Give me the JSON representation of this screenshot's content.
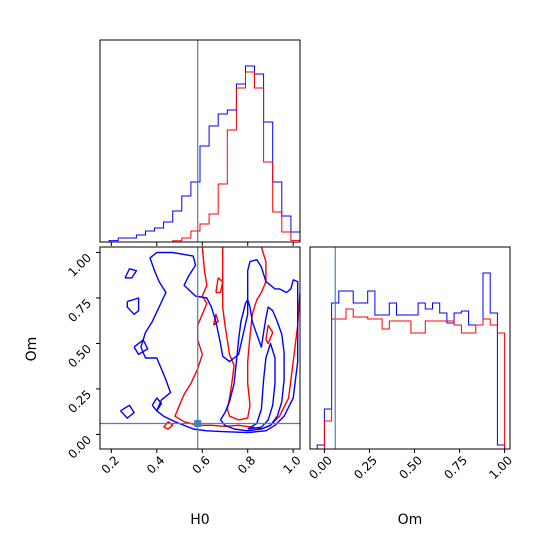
{
  "chart_data": {
    "type": "corner",
    "parameters": [
      "H0",
      "Om"
    ],
    "truth": {
      "H0": 0.58,
      "Om": 0.06
    },
    "truth_color": "#4682b4",
    "series_colors": {
      "blue": "#0000ff",
      "red": "#ff0000"
    },
    "xlim_H0": [
      0.15,
      1.03
    ],
    "xlim_Om": [
      -0.08,
      1.03
    ],
    "ylim_Om": [
      -0.08,
      1.03
    ],
    "ticks_H0": [
      "0.2",
      "0.4",
      "0.6",
      "0.8",
      "1.0"
    ],
    "ticks_Om": [
      "0.00",
      "0.25",
      "0.50",
      "0.75",
      "1.00"
    ],
    "hist_H0": {
      "edges": [
        0.19,
        0.23,
        0.27,
        0.31,
        0.35,
        0.39,
        0.43,
        0.47,
        0.51,
        0.55,
        0.59,
        0.63,
        0.67,
        0.71,
        0.75,
        0.79,
        0.83,
        0.87,
        0.91,
        0.95,
        0.99,
        1.03
      ],
      "blue": [
        0.007,
        0.02,
        0.02,
        0.035,
        0.055,
        0.07,
        0.1,
        0.155,
        0.23,
        0.3,
        0.48,
        0.58,
        0.64,
        0.66,
        0.79,
        0.88,
        0.84,
        0.6,
        0.3,
        0.13,
        0.05
      ],
      "red": [
        0,
        0,
        0,
        0,
        0,
        0,
        0,
        0.006,
        0.02,
        0.055,
        0.09,
        0.14,
        0.29,
        0.56,
        0.77,
        0.85,
        0.77,
        0.4,
        0.15,
        0.05,
        0.008
      ]
    },
    "hist_Om": {
      "edges": [
        -0.04,
        0,
        0.04,
        0.08,
        0.12,
        0.16,
        0.2,
        0.24,
        0.28,
        0.32,
        0.36,
        0.4,
        0.44,
        0.48,
        0.52,
        0.56,
        0.6,
        0.64,
        0.68,
        0.72,
        0.76,
        0.8,
        0.84,
        0.88,
        0.92,
        0.96,
        1.0
      ],
      "blue": [
        0.02,
        0.2,
        0.73,
        0.79,
        0.79,
        0.73,
        0.73,
        0.79,
        0.67,
        0.67,
        0.73,
        0.67,
        0.67,
        0.67,
        0.73,
        0.7,
        0.73,
        0.68,
        0.63,
        0.68,
        0.69,
        0.62,
        0.62,
        0.88,
        0.68,
        0.02
      ],
      "red": [
        0,
        0.14,
        0.65,
        0.65,
        0.7,
        0.66,
        0.66,
        0.65,
        0.65,
        0.6,
        0.64,
        0.64,
        0.64,
        0.58,
        0.58,
        0.64,
        0.64,
        0.64,
        0.64,
        0.62,
        0.58,
        0.58,
        0.62,
        0.65,
        0.62,
        0.58
      ]
    },
    "contours": {
      "blue": [
        [
          [
            0.56,
            0.03
          ],
          [
            0.48,
            0.07
          ],
          [
            0.43,
            0.1
          ],
          [
            0.4,
            0.13
          ],
          [
            0.42,
            0.19
          ],
          [
            0.46,
            0.23
          ],
          [
            0.44,
            0.3
          ],
          [
            0.42,
            0.36
          ],
          [
            0.4,
            0.42
          ],
          [
            0.35,
            0.42
          ],
          [
            0.33,
            0.48
          ],
          [
            0.35,
            0.56
          ],
          [
            0.38,
            0.62
          ],
          [
            0.41,
            0.7
          ],
          [
            0.44,
            0.78
          ],
          [
            0.41,
            0.84
          ],
          [
            0.39,
            0.9
          ],
          [
            0.37,
            0.97
          ],
          [
            0.4,
            1.0
          ],
          [
            0.47,
            1.0
          ],
          [
            0.56,
            0.98
          ],
          [
            0.57,
            0.93
          ],
          [
            0.54,
            0.87
          ],
          [
            0.52,
            0.82
          ],
          [
            0.57,
            0.76
          ],
          [
            0.62,
            0.75
          ],
          [
            0.64,
            0.7
          ],
          [
            0.66,
            0.62
          ],
          [
            0.68,
            0.5
          ],
          [
            0.69,
            0.43
          ],
          [
            0.72,
            0.4
          ],
          [
            0.76,
            0.44
          ],
          [
            0.8,
            0.66
          ],
          [
            0.8,
            0.9
          ],
          [
            0.81,
            0.95
          ],
          [
            0.84,
            0.96
          ],
          [
            0.86,
            0.92
          ],
          [
            0.88,
            0.84
          ],
          [
            0.9,
            0.82
          ],
          [
            0.92,
            0.8
          ],
          [
            0.94,
            0.8
          ],
          [
            0.97,
            0.78
          ],
          [
            0.99,
            0.8
          ],
          [
            1.0,
            0.85
          ],
          [
            1.02,
            0.84
          ],
          [
            1.02,
            0.4
          ],
          [
            1.0,
            0.2
          ],
          [
            0.96,
            0.1
          ],
          [
            0.92,
            0.05
          ],
          [
            0.88,
            0.02
          ],
          [
            0.8,
            0.01
          ],
          [
            0.7,
            0.015
          ],
          [
            0.62,
            0.02
          ],
          [
            0.56,
            0.03
          ]
        ],
        [
          [
            0.68,
            0.08
          ],
          [
            0.7,
            0.12
          ],
          [
            0.72,
            0.18
          ],
          [
            0.74,
            0.28
          ],
          [
            0.75,
            0.4
          ],
          [
            0.76,
            0.52
          ],
          [
            0.77,
            0.62
          ],
          [
            0.79,
            0.72
          ],
          [
            0.8,
            0.74
          ],
          [
            0.81,
            0.7
          ],
          [
            0.82,
            0.62
          ],
          [
            0.84,
            0.55
          ],
          [
            0.86,
            0.48
          ],
          [
            0.87,
            0.56
          ],
          [
            0.88,
            0.64
          ],
          [
            0.89,
            0.7
          ],
          [
            0.91,
            0.68
          ],
          [
            0.93,
            0.62
          ],
          [
            0.95,
            0.55
          ],
          [
            0.96,
            0.45
          ],
          [
            0.96,
            0.3
          ],
          [
            0.95,
            0.18
          ],
          [
            0.93,
            0.1
          ],
          [
            0.9,
            0.05
          ],
          [
            0.86,
            0.03
          ],
          [
            0.8,
            0.02
          ],
          [
            0.74,
            0.03
          ],
          [
            0.7,
            0.05
          ],
          [
            0.68,
            0.08
          ]
        ],
        [
          [
            0.8,
            0.03
          ],
          [
            0.84,
            0.06
          ],
          [
            0.86,
            0.14
          ],
          [
            0.87,
            0.3
          ],
          [
            0.88,
            0.42
          ],
          [
            0.9,
            0.5
          ],
          [
            0.92,
            0.42
          ],
          [
            0.92,
            0.28
          ],
          [
            0.91,
            0.16
          ],
          [
            0.89,
            0.08
          ],
          [
            0.86,
            0.04
          ],
          [
            0.8,
            0.03
          ]
        ],
        [
          [
            0.27,
            0.73
          ],
          [
            0.32,
            0.75
          ],
          [
            0.32,
            0.68
          ],
          [
            0.3,
            0.66
          ],
          [
            0.27,
            0.7
          ],
          [
            0.27,
            0.73
          ]
        ],
        [
          [
            0.3,
            0.48
          ],
          [
            0.34,
            0.52
          ],
          [
            0.36,
            0.47
          ],
          [
            0.32,
            0.44
          ],
          [
            0.3,
            0.48
          ]
        ],
        [
          [
            0.26,
            0.86
          ],
          [
            0.28,
            0.91
          ],
          [
            0.31,
            0.9
          ],
          [
            0.29,
            0.86
          ],
          [
            0.26,
            0.86
          ]
        ],
        [
          [
            0.24,
            0.13
          ],
          [
            0.28,
            0.16
          ],
          [
            0.3,
            0.12
          ],
          [
            0.27,
            0.09
          ],
          [
            0.24,
            0.13
          ]
        ],
        [
          [
            0.38,
            0.16
          ],
          [
            0.4,
            0.2
          ],
          [
            0.42,
            0.17
          ],
          [
            0.4,
            0.13
          ],
          [
            0.38,
            0.16
          ]
        ]
      ],
      "red": [
        [
          [
            0.69,
            1.03
          ],
          [
            0.69,
            0.92
          ],
          [
            0.69,
            0.8
          ],
          [
            0.69,
            0.7
          ],
          [
            0.7,
            0.6
          ],
          [
            0.71,
            0.52
          ],
          [
            0.72,
            0.44
          ],
          [
            0.74,
            0.38
          ],
          [
            0.73,
            0.28
          ],
          [
            0.72,
            0.2
          ],
          [
            0.71,
            0.14
          ],
          [
            0.72,
            0.1
          ],
          [
            0.76,
            0.08
          ],
          [
            0.8,
            0.09
          ],
          [
            0.81,
            0.16
          ],
          [
            0.8,
            0.28
          ],
          [
            0.8,
            0.4
          ],
          [
            0.81,
            0.54
          ],
          [
            0.82,
            0.66
          ],
          [
            0.84,
            0.74
          ],
          [
            0.86,
            0.78
          ],
          [
            0.88,
            0.84
          ],
          [
            0.88,
            0.95
          ],
          [
            0.86,
            1.03
          ]
        ],
        [
          [
            0.6,
            1.03
          ],
          [
            0.61,
            0.9
          ],
          [
            0.62,
            0.82
          ],
          [
            0.6,
            0.76
          ],
          [
            0.62,
            0.72
          ],
          [
            0.6,
            0.66
          ],
          [
            0.58,
            0.6
          ],
          [
            0.58,
            0.52
          ],
          [
            0.6,
            0.44
          ],
          [
            0.58,
            0.36
          ],
          [
            0.55,
            0.28
          ],
          [
            0.52,
            0.22
          ],
          [
            0.5,
            0.16
          ],
          [
            0.48,
            0.1
          ],
          [
            0.52,
            0.07
          ],
          [
            0.58,
            0.05
          ],
          [
            0.64,
            0.05
          ],
          [
            0.7,
            0.045
          ],
          [
            0.76,
            0.05
          ],
          [
            0.82,
            0.04
          ],
          [
            0.86,
            0.03
          ],
          [
            0.9,
            0.05
          ],
          [
            0.94,
            0.1
          ],
          [
            0.98,
            0.2
          ],
          [
            1.0,
            0.4
          ],
          [
            1.02,
            0.6
          ],
          [
            1.03,
            0.78
          ]
        ],
        [
          [
            0.66,
            0.78
          ],
          [
            0.67,
            0.86
          ],
          [
            0.69,
            0.84
          ],
          [
            0.68,
            0.78
          ],
          [
            0.66,
            0.78
          ]
        ],
        [
          [
            0.88,
            0.52
          ],
          [
            0.89,
            0.6
          ],
          [
            0.91,
            0.56
          ],
          [
            0.89,
            0.5
          ],
          [
            0.88,
            0.52
          ]
        ],
        [
          [
            0.65,
            0.6
          ],
          [
            0.66,
            0.66
          ],
          [
            0.67,
            0.62
          ],
          [
            0.65,
            0.6
          ]
        ],
        [
          [
            0.43,
            0.04
          ],
          [
            0.45,
            0.07
          ],
          [
            0.47,
            0.05
          ],
          [
            0.45,
            0.03
          ],
          [
            0.43,
            0.04
          ]
        ]
      ]
    }
  }
}
